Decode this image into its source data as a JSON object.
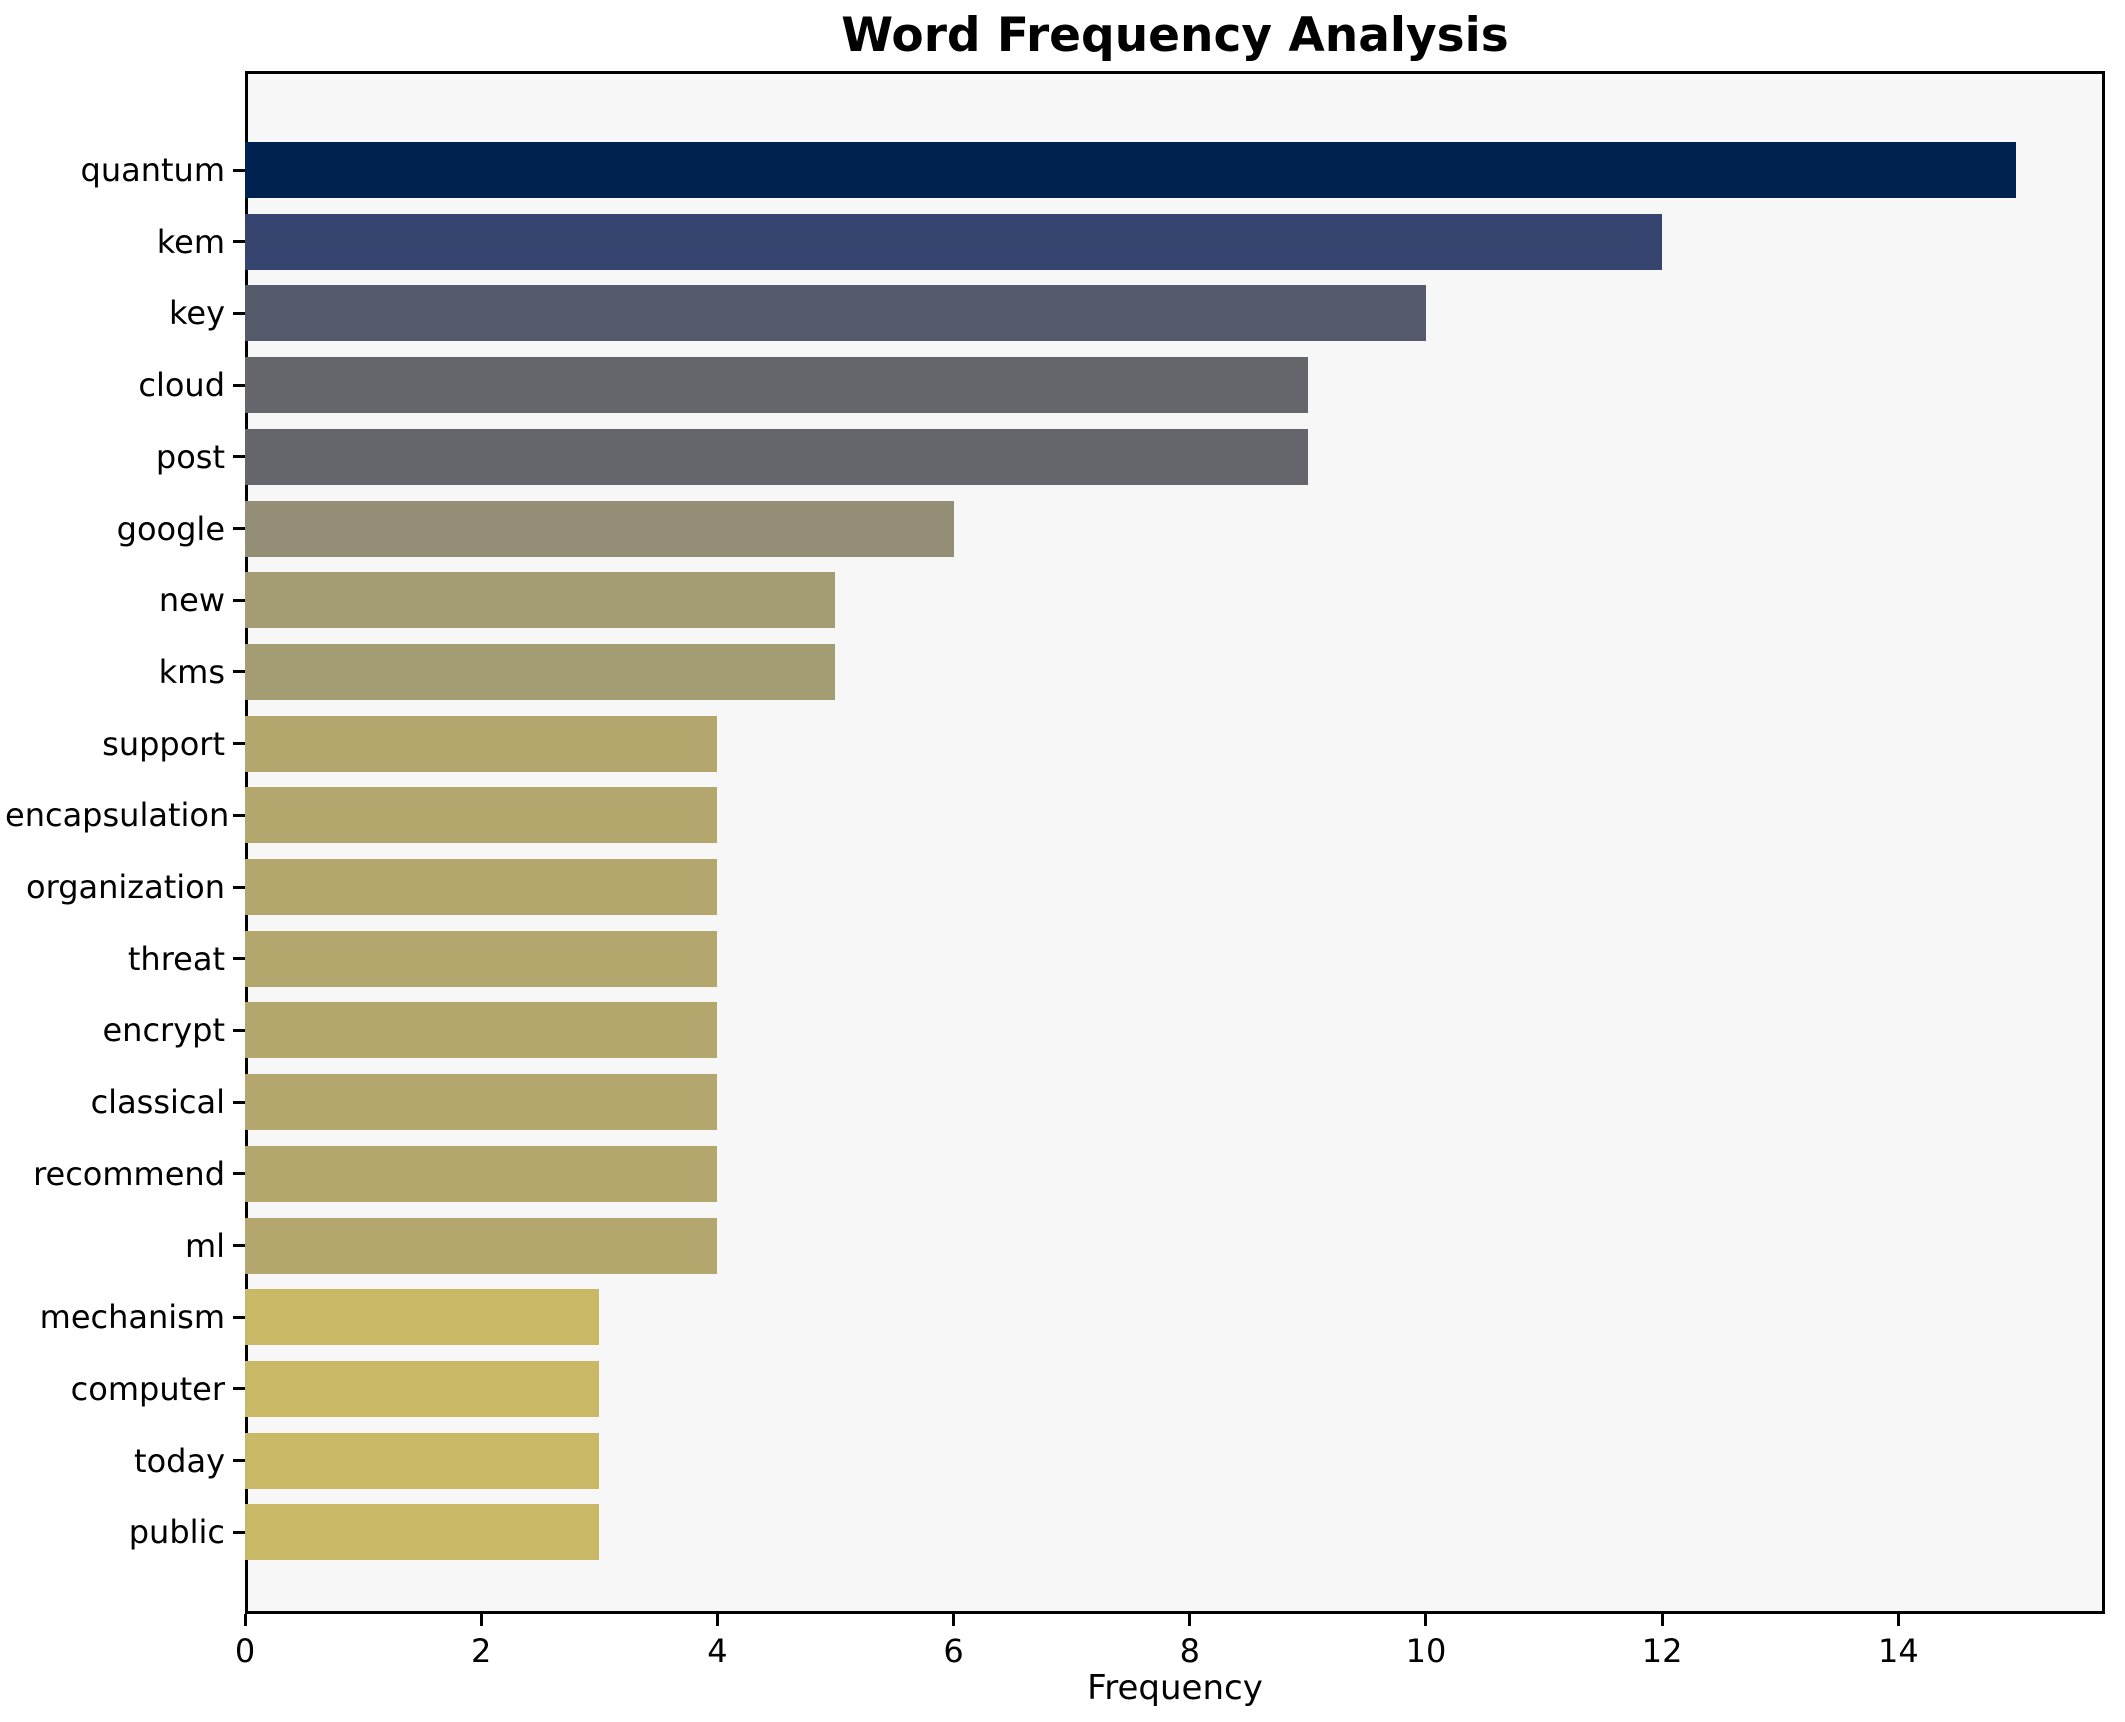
{
  "chart_data": {
    "type": "bar",
    "orientation": "horizontal",
    "title": "Word Frequency Analysis",
    "xlabel": "Frequency",
    "ylabel": "",
    "categories": [
      "quantum",
      "kem",
      "key",
      "cloud",
      "post",
      "google",
      "new",
      "kms",
      "support",
      "encapsulation",
      "organization",
      "threat",
      "encrypt",
      "classical",
      "recommend",
      "ml",
      "mechanism",
      "computer",
      "today",
      "public"
    ],
    "values": [
      15,
      12,
      10,
      9,
      9,
      6,
      5,
      5,
      4,
      4,
      4,
      4,
      4,
      4,
      4,
      4,
      3,
      3,
      3,
      3
    ],
    "bar_colors": [
      "#00224e",
      "#36456f",
      "#565b6c",
      "#65666c",
      "#65666c",
      "#948e77",
      "#a49d73",
      "#a49d73",
      "#b4a76d",
      "#b4a76d",
      "#b4a76d",
      "#b4a76d",
      "#b4a76d",
      "#b4a76d",
      "#b4a76d",
      "#b4a76d",
      "#c9b866",
      "#c9b866",
      "#c9b866",
      "#c9b866"
    ],
    "xticks": [
      0,
      2,
      4,
      6,
      8,
      10,
      12,
      14
    ],
    "xlim": [
      0,
      15.75
    ],
    "grid": false,
    "legend": null,
    "colors": {
      "plot_background": "#f7f7f8",
      "figure_background": "#ffffff",
      "spine": "#000000",
      "text": "#000000"
    }
  }
}
